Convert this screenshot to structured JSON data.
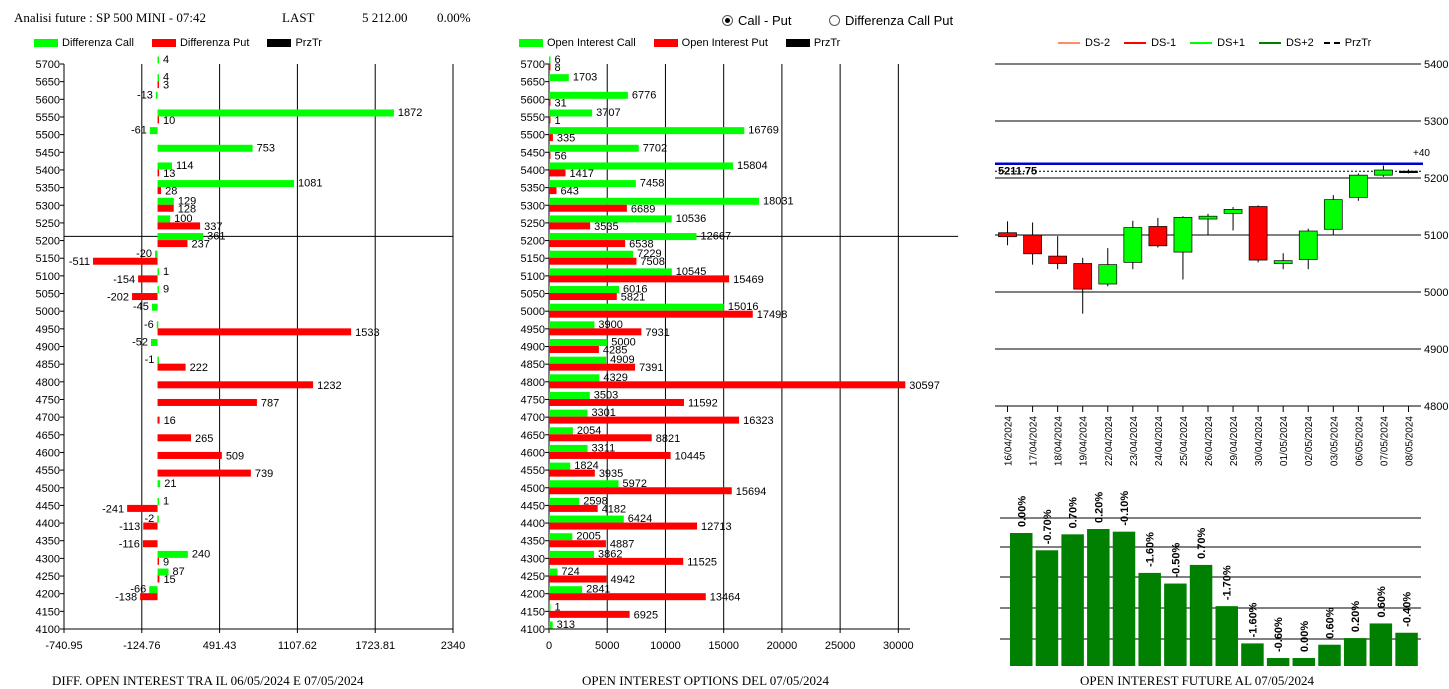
{
  "header": {
    "title": "Analisi future : SP 500 MINI - 07:42",
    "last_label": "LAST",
    "last_value": "5 212.00",
    "last_change": "0.00%"
  },
  "radio": {
    "option1": "Call - Put",
    "option2": "Differenza Call Put",
    "selected": "Call - Put"
  },
  "colors": {
    "green": "#00ff00",
    "red": "#ff0000",
    "dark_green": "#008000",
    "blue": "#0000cc"
  },
  "legends": {
    "diff": [
      {
        "label": "Differenza Call",
        "color": "#00ff00"
      },
      {
        "label": "Differenza Put",
        "color": "#ff0000"
      },
      {
        "label": "PrzTr",
        "color": "#000000"
      }
    ],
    "oi": [
      {
        "label": "Open Interest Call",
        "color": "#00ff00"
      },
      {
        "label": "Open Interest Put",
        "color": "#ff0000"
      },
      {
        "label": "PrzTr",
        "color": "#000000"
      }
    ],
    "future": [
      {
        "label": "DS-2",
        "color": "#ff8c69",
        "style": "solid"
      },
      {
        "label": "DS-1",
        "color": "#ff0000",
        "style": "solid"
      },
      {
        "label": "DS+1",
        "color": "#00ff00",
        "style": "solid"
      },
      {
        "label": "DS+2",
        "color": "#008000",
        "style": "solid"
      },
      {
        "label": "PrzTr",
        "color": "#000000",
        "style": "dashed"
      }
    ]
  },
  "footers": {
    "diff": "DIFF. OPEN INTEREST TRA IL 06/05/2024 E 07/05/2024",
    "oi": "OPEN INTEREST OPTIONS DEL 07/05/2024",
    "future": "OPEN INTEREST FUTURE AL 07/05/2024"
  },
  "chart_data": [
    {
      "type": "bar",
      "orientation": "horizontal",
      "name": "diff",
      "strikes": [
        "5700",
        "5650",
        "5600",
        "5550",
        "5500",
        "5450",
        "5400",
        "5350",
        "5300",
        "5250",
        "5200",
        "5150",
        "5100",
        "5050",
        "5000",
        "4950",
        "4900",
        "4850",
        "4800",
        "4750",
        "4700",
        "4650",
        "4600",
        "4550",
        "4500",
        "4450",
        "4400",
        "4350",
        "4300",
        "4250",
        "4200",
        "4150",
        "4100"
      ],
      "series": [
        {
          "name": "Differenza Call",
          "values": [
            4,
            4,
            -13,
            1872,
            -61,
            753,
            114,
            1081,
            129,
            100,
            361,
            -20,
            1,
            9,
            -45,
            -6,
            -52,
            -1,
            null,
            null,
            null,
            null,
            null,
            null,
            21,
            1,
            -2,
            null,
            240,
            87,
            -66,
            null,
            null
          ]
        },
        {
          "name": "Differenza Put",
          "values": [
            null,
            3,
            null,
            10,
            null,
            null,
            13,
            28,
            128,
            337,
            237,
            -511,
            -154,
            -202,
            null,
            1533,
            null,
            222,
            1232,
            787,
            16,
            265,
            509,
            739,
            null,
            -241,
            -113,
            -116,
            9,
            15,
            -138,
            null,
            null
          ]
        }
      ],
      "call_labels": [
        "4",
        "4",
        "-13",
        "1872",
        "-61",
        "753",
        "114",
        "1081",
        "129",
        "100",
        "361",
        "-20",
        "1",
        "9",
        "-45",
        "-6",
        "-52",
        "-1",
        "",
        "",
        "",
        "",
        "",
        "",
        "21",
        "1",
        "-2",
        "",
        "240",
        "87",
        "-66",
        "",
        ""
      ],
      "put_labels": [
        "",
        "3",
        "",
        "10",
        "",
        "",
        "13",
        "28",
        "128",
        "337",
        "237",
        "-511",
        "-154",
        "-202",
        "",
        "1533",
        "",
        "222",
        "1232",
        "787",
        "16",
        "265",
        "509",
        "739",
        "",
        "-241",
        "-113",
        "-116",
        "9",
        "15",
        "-138",
        "",
        ""
      ],
      "xlim": [
        -740.95,
        2340
      ],
      "xticks": [
        "-740.95",
        "-124.76",
        "491.43",
        "1107.62",
        "1723.81",
        "2340"
      ],
      "przTr": 5211.75
    },
    {
      "type": "bar",
      "orientation": "horizontal",
      "name": "oi",
      "strikes": [
        "5700",
        "5650",
        "5600",
        "5550",
        "5500",
        "5450",
        "5400",
        "5350",
        "5300",
        "5250",
        "5200",
        "5150",
        "5100",
        "5050",
        "5000",
        "4950",
        "4900",
        "4850",
        "4800",
        "4750",
        "4700",
        "4650",
        "4600",
        "4550",
        "4500",
        "4450",
        "4400",
        "4350",
        "4300",
        "4250",
        "4200",
        "4150",
        "4100"
      ],
      "series": [
        {
          "name": "Open Interest Call",
          "values": [
            6,
            1703,
            6776,
            3707,
            16769,
            7702,
            15804,
            7458,
            18031,
            10536,
            12667,
            7229,
            10545,
            6016,
            15016,
            3900,
            5000,
            4909,
            4329,
            3503,
            3301,
            2054,
            3311,
            1824,
            5972,
            2598,
            6424,
            2005,
            3862,
            724,
            2841,
            1,
            313
          ]
        },
        {
          "name": "Open Interest Put",
          "values": [
            8,
            null,
            31,
            1,
            335,
            56,
            1417,
            643,
            6689,
            3535,
            6538,
            7508,
            15469,
            5821,
            17498,
            7931,
            4285,
            7391,
            30597,
            11592,
            16323,
            8821,
            10445,
            3935,
            15694,
            4182,
            12713,
            4887,
            11525,
            4942,
            13464,
            6925,
            null
          ]
        }
      ],
      "call_labels": [
        "6",
        "1703",
        "6776",
        "3707",
        "16769",
        "7702",
        "15804",
        "7458",
        "18031",
        "10536",
        "12667",
        "7229",
        "10545",
        "6016",
        "15016",
        "3900",
        "5000",
        "4909",
        "4329",
        "3503",
        "3301",
        "2054",
        "3311",
        "1824",
        "5972",
        "2598",
        "6424",
        "2005",
        "3862",
        "724",
        "2841",
        "1",
        "313"
      ],
      "put_labels": [
        "8",
        "",
        "31",
        "1",
        "335",
        "56",
        "1417",
        "643",
        "6689",
        "3535",
        "6538",
        "7508",
        "15469",
        "5821",
        "17498",
        "7931",
        "4285",
        "7391",
        "30597",
        "11592",
        "16323",
        "8821",
        "10445",
        "3935",
        "15694",
        "4182",
        "12713",
        "4887",
        "11525",
        "4942",
        "13464",
        "6925",
        ""
      ],
      "xlim": [
        0,
        31000
      ],
      "xticks": [
        "0",
        "5000",
        "10000",
        "15000",
        "20000",
        "25000",
        "30000"
      ],
      "przTr": 5211.75
    },
    {
      "type": "candlestick",
      "name": "future",
      "dates": [
        "16/04/2024",
        "17/04/2024",
        "18/04/2024",
        "19/04/2024",
        "22/04/2024",
        "23/04/2024",
        "24/04/2024",
        "25/04/2024",
        "26/04/2024",
        "29/04/2024",
        "30/04/2024",
        "01/05/2024",
        "02/05/2024",
        "03/05/2024",
        "06/05/2024",
        "07/05/2024",
        "08/05/2024"
      ],
      "candles": [
        {
          "o": 5104,
          "h": 5124,
          "l": 5082,
          "c": 5097,
          "dir": "down"
        },
        {
          "o": 5100,
          "h": 5122,
          "l": 5048,
          "c": 5067,
          "dir": "down"
        },
        {
          "o": 5063,
          "h": 5098,
          "l": 5040,
          "c": 5050,
          "dir": "down"
        },
        {
          "o": 5050,
          "h": 5060,
          "l": 4962,
          "c": 5005,
          "dir": "down"
        },
        {
          "o": 5014,
          "h": 5077,
          "l": 5010,
          "c": 5048,
          "dir": "up"
        },
        {
          "o": 5052,
          "h": 5125,
          "l": 5040,
          "c": 5113,
          "dir": "up"
        },
        {
          "o": 5115,
          "h": 5130,
          "l": 5078,
          "c": 5081,
          "dir": "down"
        },
        {
          "o": 5070,
          "h": 5133,
          "l": 5022,
          "c": 5131,
          "dir": "up"
        },
        {
          "o": 5128,
          "h": 5137,
          "l": 5100,
          "c": 5133,
          "dir": "up"
        },
        {
          "o": 5138,
          "h": 5149,
          "l": 5108,
          "c": 5145,
          "dir": "up"
        },
        {
          "o": 5150,
          "h": 5152,
          "l": 5052,
          "c": 5056,
          "dir": "down"
        },
        {
          "o": 5050,
          "h": 5068,
          "l": 5040,
          "c": 5055,
          "dir": "up"
        },
        {
          "o": 5057,
          "h": 5111,
          "l": 5040,
          "c": 5107,
          "dir": "up"
        },
        {
          "o": 5110,
          "h": 5170,
          "l": 5101,
          "c": 5162,
          "dir": "up"
        },
        {
          "o": 5166,
          "h": 5208,
          "l": 5160,
          "c": 5205,
          "dir": "up"
        },
        {
          "o": 5205,
          "h": 5222,
          "l": 5202,
          "c": 5214,
          "dir": "up"
        },
        {
          "o": 5212,
          "h": 5215,
          "l": 5208,
          "c": 5212,
          "dir": "flat"
        }
      ],
      "ylim": [
        4800,
        5400
      ],
      "yticks": [
        "4800",
        "4900",
        "5000",
        "5100",
        "5200",
        "5300",
        "5400"
      ],
      "price_label": "5211.75",
      "price": 5211.75,
      "blue_line": 5225,
      "blue_label": "+40"
    },
    {
      "type": "bar",
      "name": "future_oi",
      "values": [
        0.0,
        -0.7,
        0.7,
        0.2,
        -0.1,
        -1.6,
        -0.5,
        0.7,
        -1.7,
        -1.6,
        -0.6,
        0.0,
        0.6,
        0.2,
        0.6,
        -0.4
      ],
      "heights": [
        1.0,
        0.87,
        0.99,
        1.03,
        1.01,
        0.7,
        0.62,
        0.76,
        0.45,
        0.17,
        0.06,
        0.06,
        0.16,
        0.21,
        0.32,
        0.25
      ],
      "labels": [
        "0.00%",
        "-0.70%",
        "0.70%",
        "0.20%",
        "-0.10%",
        "-1.60%",
        "-0.50%",
        "0.70%",
        "-1.70%",
        "-1.60%",
        "-0.60%",
        "0.00%",
        "0.60%",
        "0.20%",
        "0.60%",
        "-0.40%"
      ]
    }
  ]
}
